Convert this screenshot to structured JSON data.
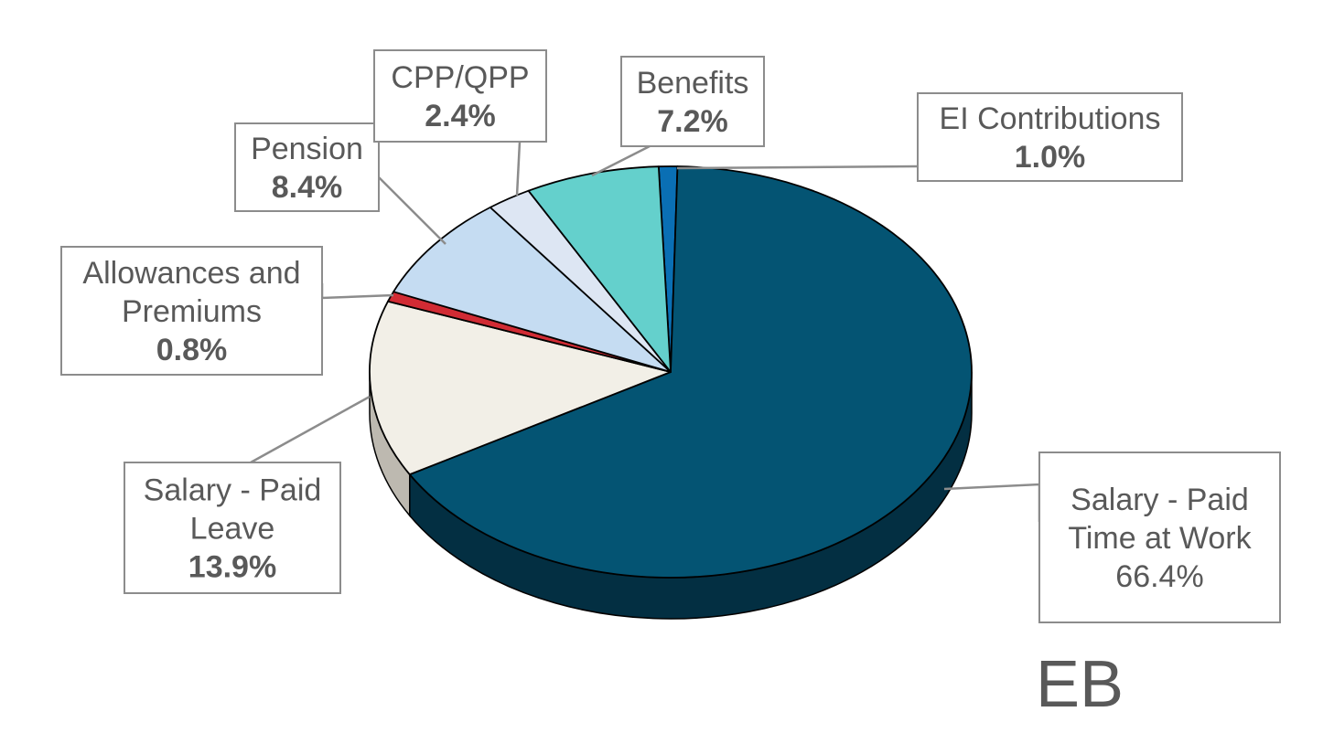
{
  "chart_data": {
    "type": "pie",
    "title": "",
    "tag": "EB",
    "start_category": "EI Contributions",
    "slices": [
      {
        "label": [
          "EI Contributions"
        ],
        "value": 1.0,
        "value_label": "1.0%",
        "color": "#0a6fb4",
        "side_color": "#064a78",
        "bold": true
      },
      {
        "label": [
          "Salary - Paid",
          "Time at Work"
        ],
        "value": 66.4,
        "value_label": "66.4%",
        "color": "#045473",
        "side_color": "#032f42",
        "bold": false
      },
      {
        "label": [
          "Salary - Paid",
          "Leave"
        ],
        "value": 13.9,
        "value_label": "13.9%",
        "color": "#f2efe7",
        "side_color": "#bdb9b0",
        "bold": true
      },
      {
        "label": [
          "Allowances and",
          "Premiums"
        ],
        "value": 0.8,
        "value_label": "0.8%",
        "color": "#d12b34",
        "side_color": "#8c1c22",
        "bold": true
      },
      {
        "label": [
          "Pension"
        ],
        "value": 8.4,
        "value_label": "8.4%",
        "color": "#c5dcf2",
        "side_color": "#93a8bc",
        "bold": true
      },
      {
        "label": [
          "CPP/QPP"
        ],
        "value": 2.4,
        "value_label": "2.4%",
        "color": "#dde6f3",
        "side_color": "#a9b1bd",
        "bold": true
      },
      {
        "label": [
          "Benefits"
        ],
        "value": 7.2,
        "value_label": "7.2%",
        "color": "#64d0cc",
        "side_color": "#3e8f8c",
        "bold": true
      }
    ]
  }
}
